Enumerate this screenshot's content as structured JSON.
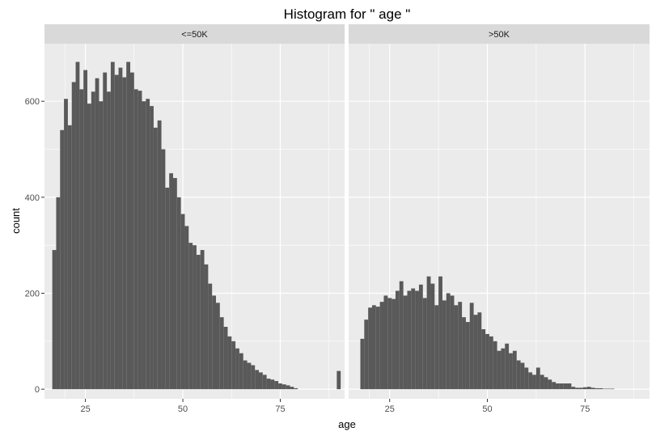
{
  "chart_data": {
    "type": "bar",
    "title": "Histogram for \" age \"",
    "xlabel": "age",
    "ylabel": "count",
    "xlim": [
      14.5,
      91.5
    ],
    "ylim": [
      -20,
      720
    ],
    "x_ticks": [
      25,
      50,
      75
    ],
    "y_ticks": [
      0,
      200,
      400,
      600
    ],
    "grid": true,
    "bin_width": 1,
    "colors": {
      "bar": "#595959",
      "panel_bg": "#ebebeb",
      "strip_bg": "#d9d9d9",
      "grid": "#ffffff"
    },
    "x": [
      17,
      18,
      19,
      20,
      21,
      22,
      23,
      24,
      25,
      26,
      27,
      28,
      29,
      30,
      31,
      32,
      33,
      34,
      35,
      36,
      37,
      38,
      39,
      40,
      41,
      42,
      43,
      44,
      45,
      46,
      47,
      48,
      49,
      50,
      51,
      52,
      53,
      54,
      55,
      56,
      57,
      58,
      59,
      60,
      61,
      62,
      63,
      64,
      65,
      66,
      67,
      68,
      69,
      70,
      71,
      72,
      73,
      74,
      75,
      76,
      77,
      78,
      79,
      80,
      81,
      82,
      83,
      84,
      85,
      86,
      87,
      88,
      89,
      90
    ],
    "facets": [
      {
        "label": "<=50K",
        "values": [
          290,
          400,
          540,
          605,
          550,
          640,
          682,
          625,
          665,
          595,
          620,
          648,
          600,
          660,
          620,
          682,
          655,
          670,
          650,
          682,
          660,
          625,
          622,
          600,
          605,
          590,
          545,
          560,
          500,
          420,
          450,
          440,
          400,
          365,
          340,
          305,
          300,
          280,
          290,
          260,
          220,
          195,
          180,
          150,
          130,
          110,
          100,
          85,
          75,
          60,
          55,
          50,
          40,
          35,
          30,
          22,
          20,
          17,
          12,
          10,
          8,
          5,
          2,
          0,
          0,
          0,
          0,
          0,
          0,
          0,
          0,
          0,
          0,
          38
        ]
      },
      {
        "label": ">50K",
        "values": [
          0,
          105,
          145,
          170,
          175,
          172,
          182,
          195,
          190,
          188,
          205,
          225,
          195,
          205,
          210,
          205,
          218,
          190,
          235,
          220,
          175,
          235,
          185,
          200,
          195,
          175,
          182,
          150,
          140,
          180,
          155,
          160,
          125,
          115,
          110,
          100,
          80,
          85,
          95,
          75,
          80,
          60,
          55,
          45,
          35,
          30,
          45,
          30,
          25,
          20,
          15,
          12,
          12,
          12,
          12,
          5,
          3,
          3,
          4,
          5,
          3,
          2,
          2,
          1,
          1,
          1,
          0,
          0,
          0,
          0,
          0,
          0,
          0,
          0
        ]
      }
    ]
  }
}
